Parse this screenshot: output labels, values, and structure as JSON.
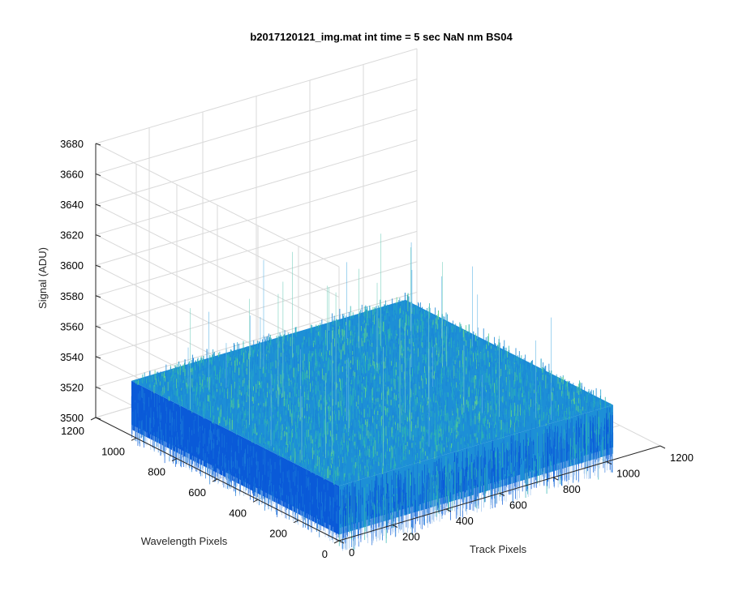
{
  "chart_data": {
    "type": "surface",
    "title": "b2017120121_img.mat int time = 5 sec  NaN nm BS04",
    "xlabel": "Track Pixels",
    "ylabel": "Wavelength Pixels",
    "zlabel": "Signal (ADU)",
    "xlim": [
      0,
      1200
    ],
    "ylim": [
      0,
      1200
    ],
    "zlim": [
      3500,
      3680
    ],
    "xticks": [
      0,
      200,
      400,
      600,
      800,
      1000,
      1200
    ],
    "yticks": [
      0,
      200,
      400,
      600,
      800,
      1000,
      1200
    ],
    "zticks": [
      3500,
      3520,
      3540,
      3560,
      3580,
      3600,
      3620,
      3640,
      3660,
      3680
    ],
    "surface": {
      "x_range": [
        0,
        1024
      ],
      "y_range": [
        0,
        1024
      ],
      "mean_level": 3530,
      "noise_min": 3500,
      "noise_max": 3620
    },
    "grid": true,
    "colors": {
      "low": "#0a5ad8",
      "mid": "#1d8fd6",
      "high": "#2fb5b0",
      "peak": "#5ed08f"
    }
  }
}
